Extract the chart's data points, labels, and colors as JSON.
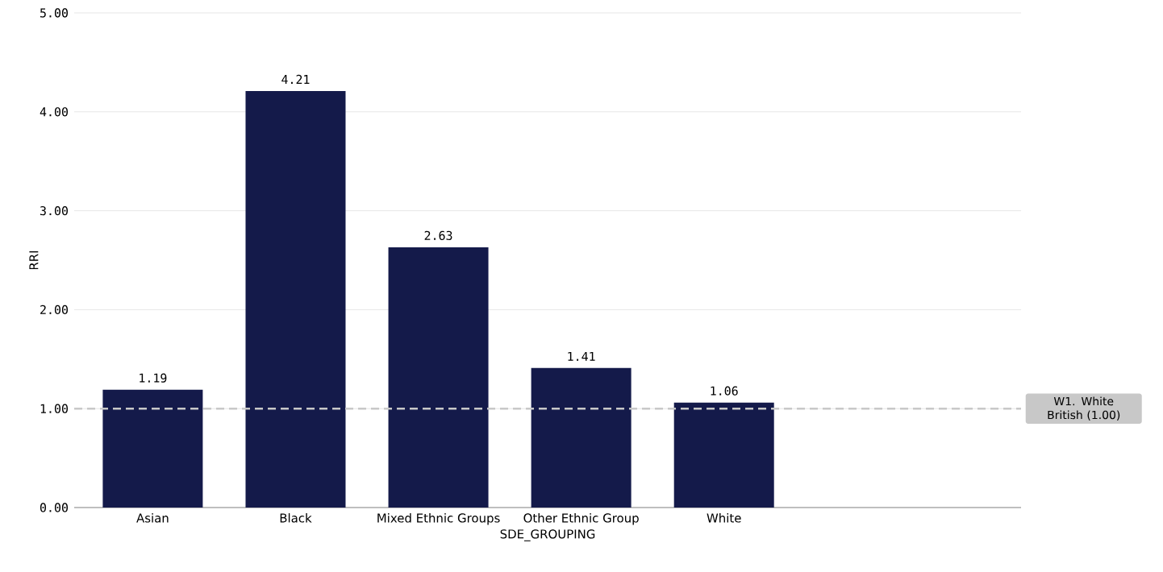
{
  "chart_data": {
    "type": "bar",
    "xlabel": "SDE_GROUPING",
    "ylabel": "RRI",
    "categories": [
      "Asian",
      "Black",
      "Mixed Ethnic Groups",
      "Other Ethnic Group",
      "White"
    ],
    "values": [
      1.19,
      4.21,
      2.63,
      1.41,
      1.06
    ],
    "color": "#141a4a",
    "ylim": [
      0,
      5
    ],
    "yticks": [
      {
        "value": 0,
        "label": "0.00"
      },
      {
        "value": 1,
        "label": "1.00"
      },
      {
        "value": 2,
        "label": "2.00"
      },
      {
        "value": 3,
        "label": "3.00"
      },
      {
        "value": 4,
        "label": "4.00"
      },
      {
        "value": 5,
        "label": "5.00"
      }
    ],
    "grid": "y",
    "data_labels": true,
    "ref_lines": [
      {
        "axis": "y",
        "value": 1,
        "label": "W1. White British (1.00)",
        "color": "#c8c8c8",
        "line_style": "dashed"
      }
    ]
  }
}
